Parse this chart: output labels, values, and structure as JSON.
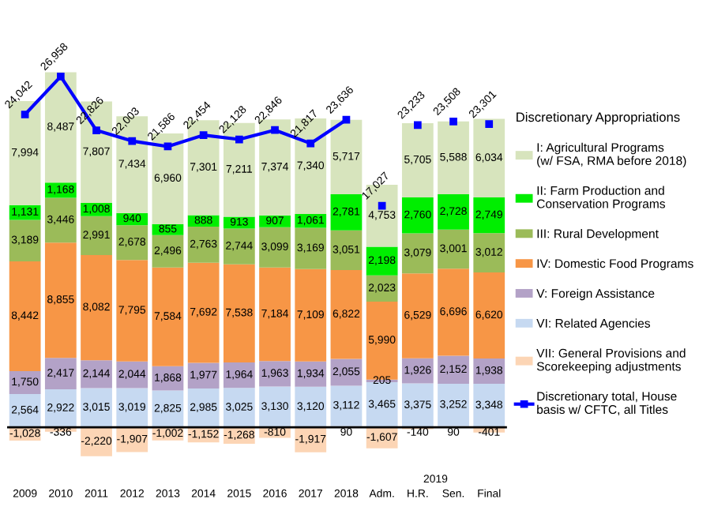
{
  "chart_data": {
    "type": "bar",
    "stacked": true,
    "legend": "right",
    "grid": false,
    "legend_title": "Discretionary Appropriations",
    "categories": [
      "2009",
      "2010",
      "2011",
      "2012",
      "2013",
      "2014",
      "2015",
      "2016",
      "2017",
      "2018",
      "Adm.",
      "H.R.",
      "Sen.",
      "Final"
    ],
    "annotations": [
      "2019"
    ],
    "series": [
      {
        "name": "VII: General Provisions and\nScorekeeping adjustments",
        "color": "#fcd5b5",
        "values": [
          -1028,
          -336,
          -2220,
          -1907,
          -1002,
          -1152,
          -1268,
          -810,
          -1917,
          90,
          -1607,
          -140,
          90,
          -401
        ],
        "value_labels": [
          "-1,028",
          "-336",
          "-2,220",
          "-1,907",
          "-1,002",
          "-1,152",
          "-1,268",
          "-810",
          "-1,917",
          "90",
          "-1,607",
          "-140",
          "90",
          "-401"
        ]
      },
      {
        "name": "VI: Related Agencies",
        "color": "#c6d9f1",
        "values": [
          2564,
          2922,
          3015,
          3019,
          2825,
          2985,
          3025,
          3130,
          3120,
          3112,
          3465,
          3375,
          3252,
          3348
        ],
        "value_labels": [
          "2,564",
          "2,922",
          "3,015",
          "3,019",
          "2,825",
          "2,985",
          "3,025",
          "3,130",
          "3,120",
          "3,112",
          "3,465",
          "3,375",
          "3,252",
          "3,348"
        ]
      },
      {
        "name": "V: Foreign Assistance",
        "color": "#b3a2c7",
        "values": [
          1750,
          2417,
          2144,
          2044,
          1868,
          1977,
          1964,
          1963,
          1934,
          2055,
          205,
          1926,
          2152,
          1938
        ],
        "value_labels": [
          "1,750",
          "2,417",
          "2,144",
          "2,044",
          "1,868",
          "1,977",
          "1,964",
          "1,963",
          "1,934",
          "2,055",
          "205",
          "1,926",
          "2,152",
          "1,938"
        ]
      },
      {
        "name": "IV: Domestic Food Programs",
        "color": "#f79646",
        "values": [
          8442,
          8855,
          8082,
          7795,
          7584,
          7692,
          7538,
          7184,
          7109,
          6822,
          5990,
          6529,
          6696,
          6620
        ],
        "value_labels": [
          "8,442",
          "8,855",
          "8,082",
          "7,795",
          "7,584",
          "7,692",
          "7,538",
          "7,184",
          "7,109",
          "6,822",
          "5,990",
          "6,529",
          "6,696",
          "6,620"
        ]
      },
      {
        "name": "III: Rural Development",
        "color": "#9bbb59",
        "values": [
          3189,
          3446,
          2991,
          2678,
          2496,
          2763,
          2744,
          3099,
          3169,
          3051,
          2023,
          3079,
          3001,
          3012
        ],
        "value_labels": [
          "3,189",
          "3,446",
          "2,991",
          "2,678",
          "2,496",
          "2,763",
          "2,744",
          "3,099",
          "3,169",
          "3,051",
          "2,023",
          "3,079",
          "3,001",
          "3,012"
        ]
      },
      {
        "name": "II: Farm Production and\nConservation Programs",
        "color": "#00ee00",
        "values": [
          1131,
          1168,
          1008,
          940,
          855,
          888,
          913,
          907,
          1061,
          2781,
          2198,
          2760,
          2728,
          2749
        ],
        "value_labels": [
          "1,131",
          "1,168",
          "1,008",
          "940",
          "855",
          "888",
          "913",
          "907",
          "1,061",
          "2,781",
          "2,198",
          "2,760",
          "2,728",
          "2,749"
        ]
      },
      {
        "name": "I: Agricultural Programs\n(w/ FSA, RMA before 2018)",
        "color": "#d7e4bd",
        "values": [
          7994,
          8487,
          7807,
          7434,
          6960,
          7301,
          7211,
          7374,
          7340,
          5717,
          4753,
          5705,
          5588,
          6034
        ],
        "value_labels": [
          "7,994",
          "8,487",
          "7,807",
          "7,434",
          "6,960",
          "7,301",
          "7,211",
          "7,374",
          "7,340",
          "5,717",
          "4,753",
          "5,705",
          "5,588",
          "6,034"
        ]
      },
      {
        "name": "Discretionary total, House\nbasis w/ CFTC, all Titles",
        "type": "line",
        "marker": "square",
        "color": "#0000ff",
        "values": [
          24042,
          26958,
          22826,
          22003,
          21586,
          22454,
          22128,
          22846,
          21817,
          23636,
          null,
          null,
          null,
          null
        ],
        "value_labels": [
          "24,042",
          "26,958",
          "22,826",
          "22,003",
          "21,586",
          "22,454",
          "22,128",
          "22,846",
          "21,817",
          "23,636",
          null,
          null,
          null,
          null
        ]
      },
      {
        "type": "scatter",
        "marker": "square",
        "color": "#0000ff",
        "values": [
          null,
          null,
          null,
          null,
          null,
          null,
          null,
          null,
          null,
          null,
          17027,
          23233,
          23508,
          23301
        ],
        "value_labels": [
          null,
          null,
          null,
          null,
          null,
          null,
          null,
          null,
          null,
          null,
          "17,027",
          "23,233",
          "23,508",
          "23,301"
        ]
      }
    ]
  }
}
